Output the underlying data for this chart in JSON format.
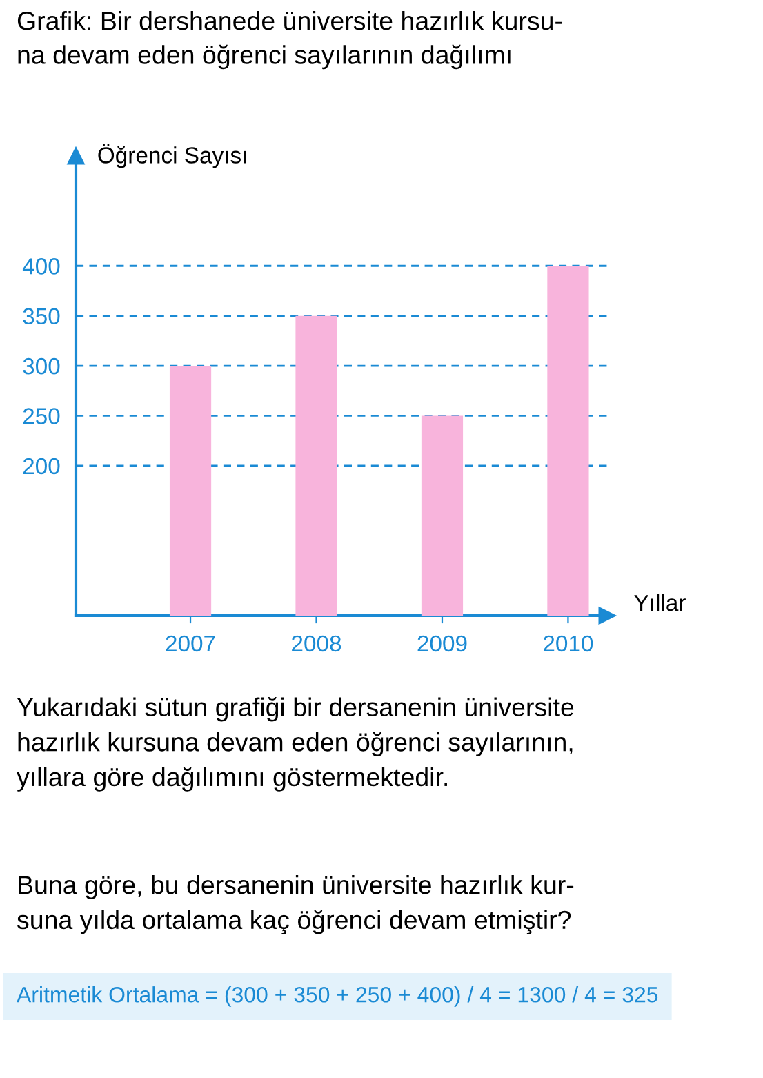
{
  "chart_data": {
    "type": "bar",
    "title": "Grafik: Bir dershanede üniversite hazırlık kursu-\nna devam eden öğrenci sayılarının dağılımı",
    "ylabel": "Öğrenci Sayısı",
    "xlabel": "Yıllar",
    "categories": [
      "2007",
      "2008",
      "2009",
      "2010"
    ],
    "values": [
      300,
      350,
      250,
      400
    ],
    "color": "#f8b4dc",
    "ylim": [
      50,
      510
    ],
    "yticks": [
      200,
      250,
      300,
      350,
      400
    ],
    "grid": "y",
    "line_style": "dashed",
    "annotations": [
      "Yukarıdaki sütun grafiği bir dersanenin üniversite\nhazırlık kursuna devam eden öğrenci sayılarının,\nyıllara göre dağılımını göstermektedir.",
      "Buna göre, bu dersanenin üniversite hazırlık kur-\nsuna yılda ortalama kaç öğrenci devam etmiştir?",
      "Aritmetik Ortalama = (300 + 350 + 250 + 400) / 4 = 1300 / 4 = 325"
    ]
  }
}
